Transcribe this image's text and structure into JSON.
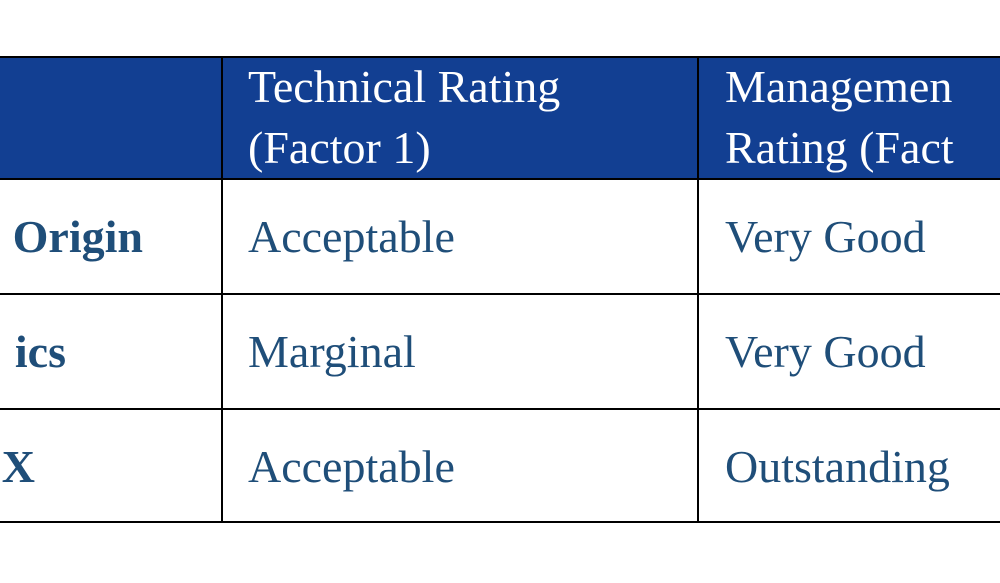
{
  "table": {
    "header": [
      [
        "Technical Rating",
        "(Factor 1)"
      ],
      [
        "Managemen",
        "Rating (Fact"
      ]
    ],
    "rows": [
      [
        "Origin",
        "Acceptable",
        "Very Good"
      ],
      [
        "ics",
        "Marginal",
        "Very Good"
      ],
      [
        "X",
        "Acceptable",
        "Outstanding"
      ]
    ]
  }
}
